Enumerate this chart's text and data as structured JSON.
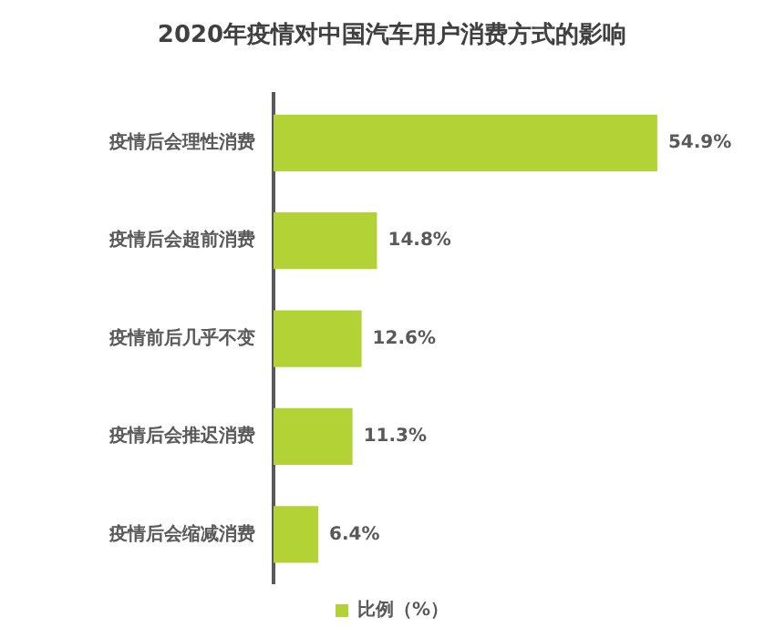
{
  "chart_data": {
    "type": "bar",
    "orientation": "horizontal",
    "title": "2020年疫情对中国汽车用户消费方式的影响",
    "categories": [
      "疫情后会理性消费",
      "疫情后会超前消费",
      "疫情前后几乎不变",
      "疫情后会推迟消费",
      "疫情后会缩减消费"
    ],
    "series": [
      {
        "name": "比例（%）",
        "color": "#b3d235",
        "values": [
          54.9,
          14.8,
          12.6,
          11.3,
          6.4
        ],
        "value_labels": [
          "54.9%",
          "14.8%",
          "12.6%",
          "11.3%",
          "6.4%"
        ]
      }
    ],
    "legend": "bottom"
  }
}
